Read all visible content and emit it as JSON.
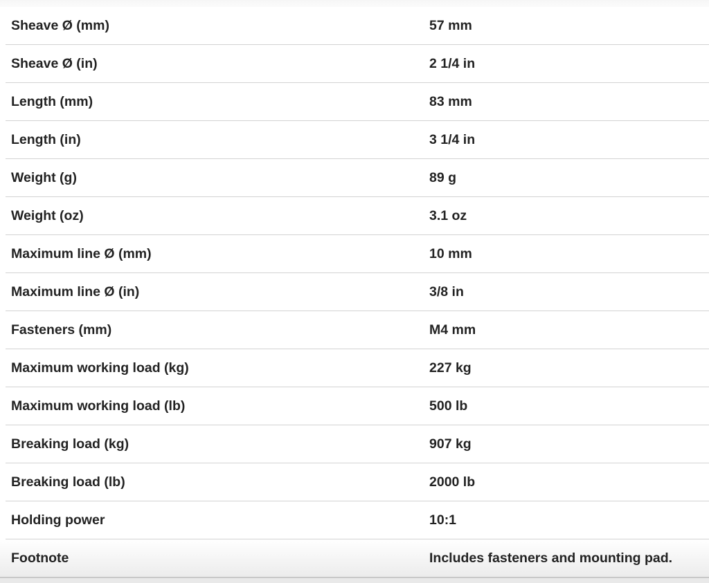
{
  "specs": [
    {
      "label": "Sheave Ø (mm)",
      "value": "57 mm"
    },
    {
      "label": "Sheave Ø (in)",
      "value": "2 1/4 in"
    },
    {
      "label": "Length (mm)",
      "value": "83 mm"
    },
    {
      "label": "Length (in)",
      "value": "3 1/4 in"
    },
    {
      "label": "Weight (g)",
      "value": "89 g"
    },
    {
      "label": "Weight (oz)",
      "value": "3.1 oz"
    },
    {
      "label": "Maximum line Ø (mm)",
      "value": "10 mm"
    },
    {
      "label": "Maximum line Ø (in)",
      "value": "3/8 in"
    },
    {
      "label": "Fasteners (mm)",
      "value": "M4 mm"
    },
    {
      "label": "Maximum working load (kg)",
      "value": "227 kg"
    },
    {
      "label": "Maximum working load (lb)",
      "value": "500 lb"
    },
    {
      "label": "Breaking load (kg)",
      "value": "907 kg"
    },
    {
      "label": "Breaking load (lb)",
      "value": "2000 lb"
    },
    {
      "label": "Holding power",
      "value": "10:1"
    },
    {
      "label": "Footnote",
      "value": "Includes fasteners and mounting pad."
    }
  ]
}
